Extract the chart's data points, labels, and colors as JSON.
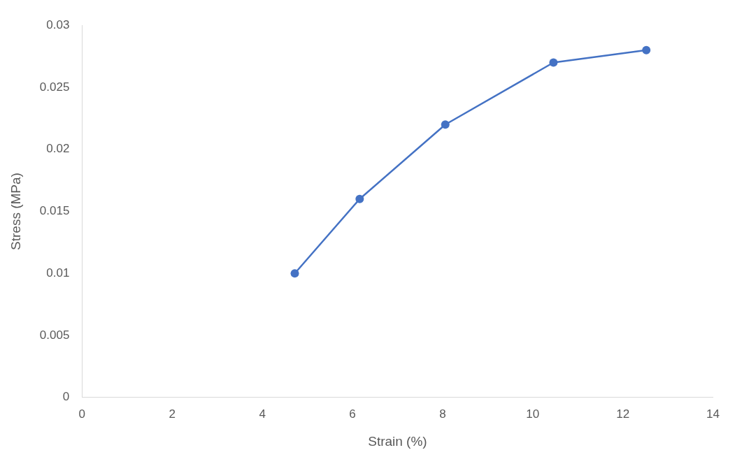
{
  "chart_data": {
    "type": "line",
    "xlabel": "Strain (%)",
    "ylabel": "Stress (MPa)",
    "series": [
      {
        "color": "#4472c4",
        "x": [
          4.72,
          6.16,
          8.06,
          10.46,
          12.52
        ],
        "values": [
          0.01,
          0.016,
          0.022,
          0.027,
          0.028
        ]
      }
    ],
    "xlim": [
      0,
      14
    ],
    "xticks": [
      0,
      2,
      4,
      6,
      8,
      10,
      12,
      14
    ],
    "ylim": [
      0,
      0.03
    ],
    "yticks": [
      0,
      0.005,
      0.01,
      0.015,
      0.02,
      0.025,
      0.03
    ],
    "grid": false,
    "legend": false,
    "marker": "circle",
    "line_style": "solid"
  }
}
